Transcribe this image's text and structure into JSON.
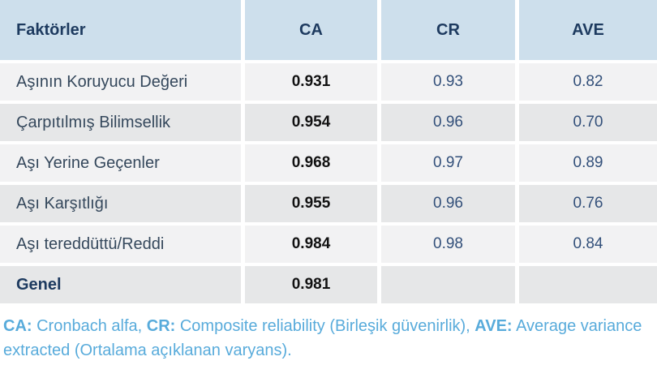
{
  "table": {
    "header": {
      "factors": "Faktörler",
      "ca": "CA",
      "cr": "CR",
      "ave": "AVE"
    },
    "rows": [
      {
        "label": "Aşının Koruyucu Değeri",
        "ca": "0.931",
        "cr": "0.93",
        "ave": "0.82"
      },
      {
        "label": "Çarpıtılmış Bilimsellik",
        "ca": "0.954",
        "cr": "0.96",
        "ave": "0.70"
      },
      {
        "label": "Aşı Yerine Geçenler",
        "ca": "0.968",
        "cr": "0.97",
        "ave": "0.89"
      },
      {
        "label": "Aşı Karşıtlığı",
        "ca": "0.955",
        "cr": "0.96",
        "ave": "0.76"
      },
      {
        "label": "Aşı tereddüttü/Reddi",
        "ca": "0.984",
        "cr": "0.98",
        "ave": "0.84"
      },
      {
        "label": "Genel",
        "ca": "0.981",
        "cr": "",
        "ave": ""
      }
    ]
  },
  "footnote": {
    "ca_label": "CA:",
    "ca_text": " Cronbach alfa, ",
    "cr_label": "CR:",
    "cr_text": " Composite reliability (Birleşik güvenirlik), ",
    "ave_label": "AVE:",
    "ave_text": " Average variance extracted (Ortalama açıklanan varyans)."
  },
  "colors": {
    "header_bg": "#cddfec",
    "header_text": "#1d3a5f",
    "row_light": "#f2f2f3",
    "row_dark": "#e6e7e8",
    "label_text": "#35485c",
    "value_text": "#33507a",
    "ca_value_text": "#121212",
    "footnote_text": "#58abdb"
  }
}
